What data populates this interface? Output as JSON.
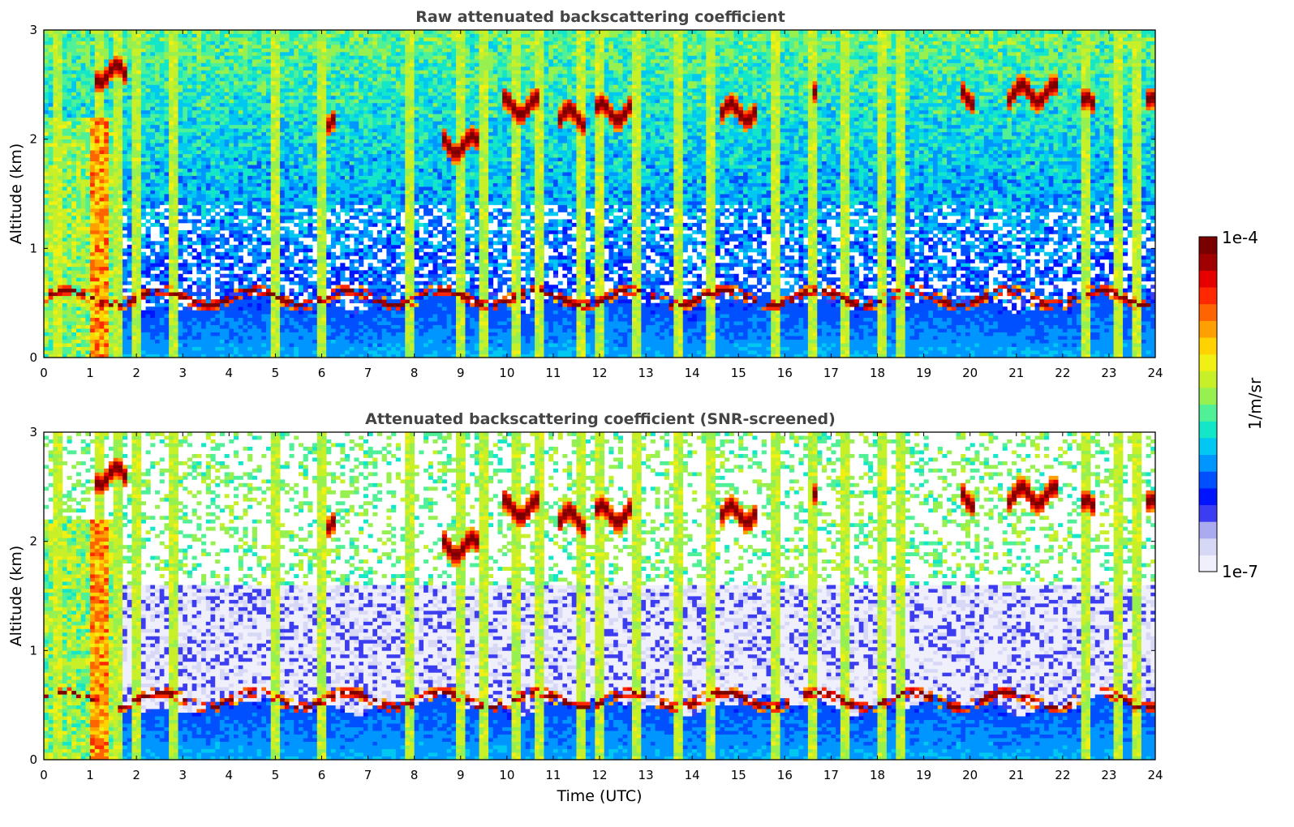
{
  "chart_data": [
    {
      "type": "heatmap",
      "title": "Raw attenuated backscattering coefficient",
      "xlabel": "",
      "ylabel": "Altitude (km)",
      "xlim": [
        0,
        24
      ],
      "ylim": [
        0,
        3
      ],
      "xticks": [
        "0",
        "1",
        "2",
        "3",
        "4",
        "5",
        "6",
        "7",
        "8",
        "9",
        "10",
        "11",
        "12",
        "13",
        "14",
        "15",
        "16",
        "17",
        "18",
        "19",
        "20",
        "21",
        "22",
        "23",
        "24"
      ],
      "yticks": [
        "0",
        "1",
        "2",
        "3"
      ],
      "screened": false,
      "features": {
        "boundary_layer_top_km": 0.5,
        "low_cloud_base_km": 0.55,
        "upper_cloud_layer_km": [
          2.0,
          2.5
        ],
        "precipitation_bands_utc": [
          0.3,
          1.2,
          1.6,
          2.0,
          2.8,
          5.0,
          6.0,
          7.9,
          9.0,
          9.5,
          10.2,
          10.7,
          11.6,
          12.0,
          12.8,
          13.7,
          14.4,
          15.8,
          16.6,
          17.3,
          18.1,
          18.5,
          22.5,
          23.2,
          23.6
        ],
        "elevated_cloud_segments": [
          {
            "t0": 1.1,
            "t1": 1.8,
            "alt": 2.6
          },
          {
            "t0": 6.1,
            "t1": 6.3,
            "alt": 2.2
          },
          {
            "t0": 8.6,
            "t1": 9.4,
            "alt": 1.95
          },
          {
            "t0": 9.9,
            "t1": 10.7,
            "alt": 2.3
          },
          {
            "t0": 11.1,
            "t1": 11.7,
            "alt": 2.2
          },
          {
            "t0": 11.9,
            "t1": 12.7,
            "alt": 2.25
          },
          {
            "t0": 14.6,
            "t1": 15.4,
            "alt": 2.25
          },
          {
            "t0": 16.6,
            "t1": 16.7,
            "alt": 2.5
          },
          {
            "t0": 19.8,
            "t1": 20.1,
            "alt": 2.4
          },
          {
            "t0": 20.8,
            "t1": 21.9,
            "alt": 2.42
          },
          {
            "t0": 22.4,
            "t1": 22.7,
            "alt": 2.3
          },
          {
            "t0": 23.8,
            "t1": 24.0,
            "alt": 2.3
          }
        ]
      }
    },
    {
      "type": "heatmap",
      "title": "Attenuated backscattering coefficient (SNR-screened)",
      "xlabel": "Time (UTC)",
      "ylabel": "Altitude (km)",
      "xlim": [
        0,
        24
      ],
      "ylim": [
        0,
        3
      ],
      "xticks": [
        "0",
        "1",
        "2",
        "3",
        "4",
        "5",
        "6",
        "7",
        "8",
        "9",
        "10",
        "11",
        "12",
        "13",
        "14",
        "15",
        "16",
        "17",
        "18",
        "19",
        "20",
        "21",
        "22",
        "23",
        "24"
      ],
      "yticks": [
        "0",
        "1",
        "2",
        "3"
      ],
      "screened": true
    }
  ],
  "colorbar": {
    "label": "1/m/sr",
    "max_label": "1e-4",
    "min_label": "1e-7",
    "min": 1e-07,
    "max": 0.0001,
    "colors": [
      "#f0f0fc",
      "#d7d7f6",
      "#aaaaf0",
      "#3c3cf0",
      "#0014ff",
      "#0050ff",
      "#0096ff",
      "#00c8f0",
      "#14e6c8",
      "#50f096",
      "#96f050",
      "#c8f028",
      "#f0f014",
      "#ffd200",
      "#ffa000",
      "#ff6400",
      "#ff2800",
      "#e60000",
      "#a00000",
      "#7a0000"
    ]
  }
}
